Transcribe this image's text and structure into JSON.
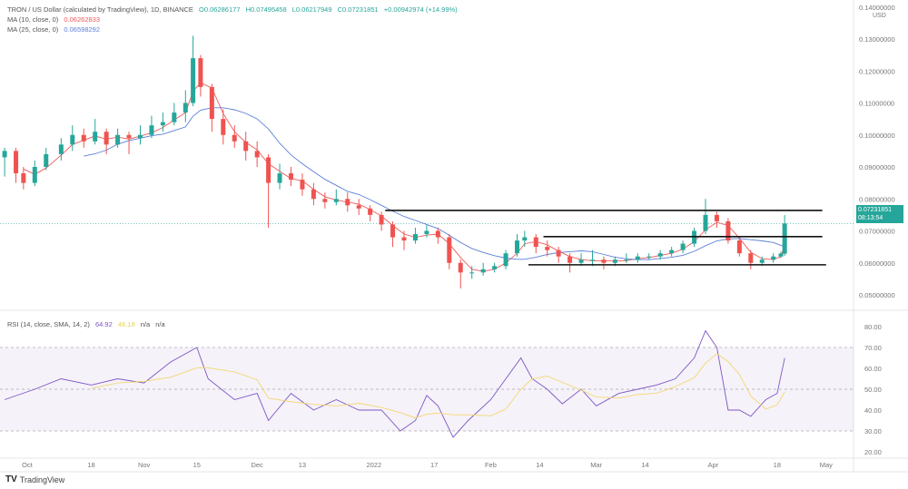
{
  "header": {
    "title": "TRON / US Dollar (calculated by TradingView), 1D, BINANCE",
    "open": "O0.06286177",
    "high": "H0.07495458",
    "low": "L0.06217949",
    "close": "C0.07231851",
    "change": "+0.00942974 (+14.99%)",
    "ma10_label": "MA (10, close, 0)",
    "ma10_value": "0.06262833",
    "ma25_label": "MA (25, close, 0)",
    "ma25_value": "0.06598292"
  },
  "rsi_legend": {
    "label": "RSI (14, close, SMA, 14, 2)",
    "value": "64.92",
    "sma": "46.18",
    "na1": "n/a",
    "na2": "n/a"
  },
  "price_label": {
    "value": "0.07231851",
    "countdown": "08:13:54"
  },
  "currency": "USD",
  "footer": {
    "brand": "TradingView"
  },
  "colors": {
    "up": "#26a69a",
    "down": "#ef5350",
    "ma10": "#f05a5a",
    "ma25": "#5b7fd6",
    "rsi": "#7e57c2",
    "rsi_sma": "#f5d76e",
    "label_bg": "#26a69a"
  },
  "chart_data": [
    {
      "type": "candlestick",
      "yaxis_ticks": [
        "0.05000000",
        "0.06000000",
        "0.07000000",
        "0.08000000",
        "0.09000000",
        "0.10000000",
        "0.11000000",
        "0.12000000",
        "0.13000000",
        "0.14000000"
      ],
      "ylim": [
        0.05,
        0.14
      ],
      "xaxis_ticks": [
        {
          "label": "Oct",
          "date": "2021-10-01"
        },
        {
          "label": "18",
          "date": "2021-10-18"
        },
        {
          "label": "Nov",
          "date": "2021-11-01"
        },
        {
          "label": "15",
          "date": "2021-11-15"
        },
        {
          "label": "Dec",
          "date": "2021-12-01"
        },
        {
          "label": "13",
          "date": "2021-12-13"
        },
        {
          "label": "2022",
          "date": "2022-01-01"
        },
        {
          "label": "17",
          "date": "2022-01-17"
        },
        {
          "label": "Feb",
          "date": "2022-02-01"
        },
        {
          "label": "14",
          "date": "2022-02-14"
        },
        {
          "label": "Mar",
          "date": "2022-03-01"
        },
        {
          "label": "14",
          "date": "2022-03-14"
        },
        {
          "label": "Apr",
          "date": "2022-04-01"
        },
        {
          "label": "18",
          "date": "2022-04-18"
        },
        {
          "label": "May",
          "date": "2022-05-01"
        }
      ],
      "ohlc": [
        [
          "2021-09-25",
          0.093,
          0.096,
          0.087,
          0.095
        ],
        [
          "2021-09-28",
          0.095,
          0.096,
          0.085,
          0.088
        ],
        [
          "2021-09-30",
          0.088,
          0.09,
          0.083,
          0.085
        ],
        [
          "2021-10-03",
          0.085,
          0.092,
          0.084,
          0.09
        ],
        [
          "2021-10-06",
          0.09,
          0.096,
          0.089,
          0.094
        ],
        [
          "2021-10-10",
          0.094,
          0.099,
          0.092,
          0.097
        ],
        [
          "2021-10-13",
          0.097,
          0.103,
          0.095,
          0.1
        ],
        [
          "2021-10-16",
          0.1,
          0.102,
          0.096,
          0.098
        ],
        [
          "2021-10-19",
          0.098,
          0.105,
          0.097,
          0.101
        ],
        [
          "2021-10-22",
          0.101,
          0.102,
          0.094,
          0.097
        ],
        [
          "2021-10-25",
          0.097,
          0.102,
          0.096,
          0.1
        ],
        [
          "2021-10-28",
          0.1,
          0.101,
          0.094,
          0.099
        ],
        [
          "2021-10-31",
          0.099,
          0.103,
          0.097,
          0.1
        ],
        [
          "2021-11-03",
          0.1,
          0.106,
          0.099,
          0.103
        ],
        [
          "2021-11-06",
          0.103,
          0.107,
          0.101,
          0.104
        ],
        [
          "2021-11-09",
          0.104,
          0.11,
          0.103,
          0.107
        ],
        [
          "2021-11-12",
          0.107,
          0.114,
          0.104,
          0.11
        ],
        [
          "2021-11-14",
          0.11,
          0.131,
          0.109,
          0.124
        ],
        [
          "2021-11-16",
          0.124,
          0.125,
          0.112,
          0.115
        ],
        [
          "2021-11-19",
          0.115,
          0.116,
          0.101,
          0.105
        ],
        [
          "2021-11-22",
          0.105,
          0.108,
          0.097,
          0.1
        ],
        [
          "2021-11-25",
          0.1,
          0.103,
          0.096,
          0.098
        ],
        [
          "2021-11-28",
          0.098,
          0.101,
          0.092,
          0.095
        ],
        [
          "2021-12-01",
          0.095,
          0.098,
          0.09,
          0.093
        ],
        [
          "2021-12-04",
          0.093,
          0.094,
          0.071,
          0.085
        ],
        [
          "2021-12-07",
          0.085,
          0.091,
          0.083,
          0.088
        ],
        [
          "2021-12-10",
          0.088,
          0.09,
          0.084,
          0.086
        ],
        [
          "2021-12-13",
          0.086,
          0.088,
          0.081,
          0.083
        ],
        [
          "2021-12-16",
          0.083,
          0.085,
          0.078,
          0.08
        ],
        [
          "2021-12-19",
          0.08,
          0.082,
          0.077,
          0.079
        ],
        [
          "2021-12-22",
          0.079,
          0.083,
          0.078,
          0.08
        ],
        [
          "2021-12-25",
          0.08,
          0.082,
          0.076,
          0.078
        ],
        [
          "2021-12-28",
          0.078,
          0.08,
          0.075,
          0.077
        ],
        [
          "2021-12-31",
          0.077,
          0.078,
          0.073,
          0.075
        ],
        [
          "2022-01-03",
          0.075,
          0.076,
          0.07,
          0.072
        ],
        [
          "2022-01-06",
          0.072,
          0.073,
          0.065,
          0.068
        ],
        [
          "2022-01-09",
          0.068,
          0.07,
          0.064,
          0.067
        ],
        [
          "2022-01-12",
          0.067,
          0.071,
          0.066,
          0.069
        ],
        [
          "2022-01-15",
          0.069,
          0.072,
          0.068,
          0.07
        ],
        [
          "2022-01-18",
          0.07,
          0.071,
          0.066,
          0.068
        ],
        [
          "2022-01-21",
          0.068,
          0.069,
          0.058,
          0.06
        ],
        [
          "2022-01-24",
          0.06,
          0.061,
          0.052,
          0.057
        ],
        [
          "2022-01-27",
          0.057,
          0.059,
          0.055,
          0.057
        ],
        [
          "2022-01-30",
          0.057,
          0.06,
          0.056,
          0.058
        ],
        [
          "2022-02-02",
          0.058,
          0.06,
          0.057,
          0.059
        ],
        [
          "2022-02-05",
          0.059,
          0.064,
          0.058,
          0.063
        ],
        [
          "2022-02-08",
          0.063,
          0.069,
          0.062,
          0.067
        ],
        [
          "2022-02-10",
          0.067,
          0.07,
          0.065,
          0.068
        ],
        [
          "2022-02-13",
          0.068,
          0.069,
          0.063,
          0.065
        ],
        [
          "2022-02-16",
          0.065,
          0.067,
          0.062,
          0.064
        ],
        [
          "2022-02-19",
          0.064,
          0.065,
          0.06,
          0.062
        ],
        [
          "2022-02-22",
          0.062,
          0.063,
          0.057,
          0.06
        ],
        [
          "2022-02-25",
          0.06,
          0.063,
          0.059,
          0.061
        ],
        [
          "2022-02-28",
          0.061,
          0.064,
          0.059,
          0.061
        ],
        [
          "2022-03-03",
          0.061,
          0.062,
          0.058,
          0.06
        ],
        [
          "2022-03-06",
          0.06,
          0.062,
          0.059,
          0.061
        ],
        [
          "2022-03-09",
          0.061,
          0.063,
          0.06,
          0.061
        ],
        [
          "2022-03-12",
          0.061,
          0.063,
          0.06,
          0.062
        ],
        [
          "2022-03-15",
          0.062,
          0.063,
          0.061,
          0.062
        ],
        [
          "2022-03-18",
          0.062,
          0.064,
          0.061,
          0.063
        ],
        [
          "2022-03-21",
          0.063,
          0.065,
          0.062,
          0.064
        ],
        [
          "2022-03-24",
          0.064,
          0.067,
          0.063,
          0.066
        ],
        [
          "2022-03-27",
          0.066,
          0.071,
          0.065,
          0.07
        ],
        [
          "2022-03-30",
          0.07,
          0.08,
          0.069,
          0.075
        ],
        [
          "2022-04-02",
          0.075,
          0.076,
          0.071,
          0.073
        ],
        [
          "2022-04-05",
          0.073,
          0.074,
          0.066,
          0.067
        ],
        [
          "2022-04-08",
          0.067,
          0.068,
          0.062,
          0.063
        ],
        [
          "2022-04-11",
          0.063,
          0.064,
          0.058,
          0.06
        ],
        [
          "2022-04-14",
          0.06,
          0.062,
          0.059,
          0.061
        ],
        [
          "2022-04-17",
          0.061,
          0.063,
          0.06,
          0.062
        ],
        [
          "2022-04-19",
          0.062,
          0.0635,
          0.0615,
          0.0629
        ],
        [
          "2022-04-20",
          0.06286177,
          0.07495458,
          0.06217949,
          0.07231851
        ]
      ],
      "ma_periods": [
        10,
        25
      ],
      "trendlines": [
        {
          "from": "2022-01-04",
          "to": "2022-04-30",
          "price": 0.0764
        },
        {
          "from": "2022-02-15",
          "to": "2022-04-30",
          "price": 0.0682
        },
        {
          "from": "2022-02-11",
          "to": "2022-05-01",
          "price": 0.0594
        }
      ],
      "last_price": 0.07231851
    },
    {
      "type": "line",
      "title": "RSI (14, close, SMA, 14, 2)",
      "ylim": [
        20,
        85
      ],
      "bands": [
        30,
        50,
        70
      ],
      "yaxis_ticks": [
        "20.00",
        "30.00",
        "40.00",
        "50.00",
        "60.00",
        "70.00",
        "80.00"
      ],
      "rsi": [
        [
          "2021-09-25",
          45
        ],
        [
          "2021-10-03",
          50
        ],
        [
          "2021-10-10",
          55
        ],
        [
          "2021-10-18",
          52
        ],
        [
          "2021-10-25",
          55
        ],
        [
          "2021-11-01",
          53
        ],
        [
          "2021-11-08",
          63
        ],
        [
          "2021-11-15",
          70
        ],
        [
          "2021-11-18",
          55
        ],
        [
          "2021-11-25",
          45
        ],
        [
          "2021-12-01",
          48
        ],
        [
          "2021-12-04",
          35
        ],
        [
          "2021-12-10",
          48
        ],
        [
          "2021-12-16",
          40
        ],
        [
          "2021-12-22",
          45
        ],
        [
          "2021-12-28",
          40
        ],
        [
          "2022-01-03",
          40
        ],
        [
          "2022-01-08",
          30
        ],
        [
          "2022-01-12",
          35
        ],
        [
          "2022-01-15",
          47
        ],
        [
          "2022-01-18",
          42
        ],
        [
          "2022-01-22",
          27
        ],
        [
          "2022-01-26",
          35
        ],
        [
          "2022-02-01",
          45
        ],
        [
          "2022-02-05",
          55
        ],
        [
          "2022-02-09",
          65
        ],
        [
          "2022-02-12",
          55
        ],
        [
          "2022-02-16",
          50
        ],
        [
          "2022-02-20",
          43
        ],
        [
          "2022-02-25",
          50
        ],
        [
          "2022-03-01",
          42
        ],
        [
          "2022-03-07",
          48
        ],
        [
          "2022-03-12",
          50
        ],
        [
          "2022-03-17",
          52
        ],
        [
          "2022-03-22",
          55
        ],
        [
          "2022-03-27",
          65
        ],
        [
          "2022-03-30",
          78
        ],
        [
          "2022-04-02",
          70
        ],
        [
          "2022-04-05",
          40
        ],
        [
          "2022-04-08",
          40
        ],
        [
          "2022-04-11",
          37
        ],
        [
          "2022-04-15",
          45
        ],
        [
          "2022-04-18",
          48
        ],
        [
          "2022-04-20",
          64.92
        ]
      ]
    }
  ]
}
